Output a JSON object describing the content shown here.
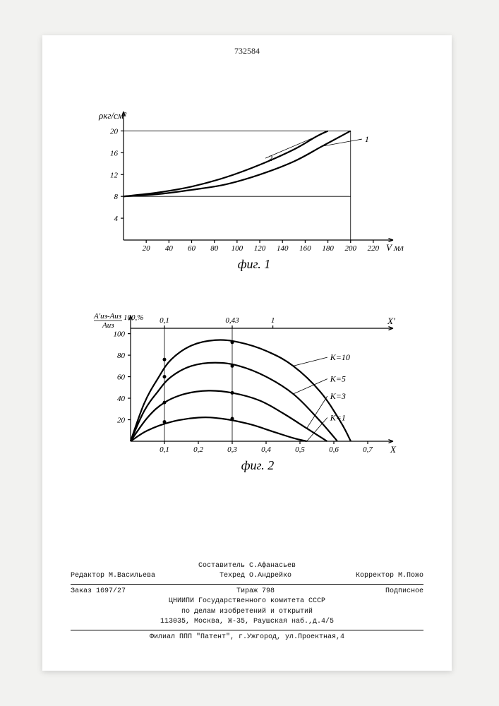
{
  "document_number": "732584",
  "fig1": {
    "type": "line",
    "x_label": "V мл",
    "y_label": "ρкг/см²",
    "x_ticks": [
      20,
      40,
      60,
      80,
      100,
      120,
      140,
      160,
      180,
      200,
      220
    ],
    "y_ticks": [
      4,
      8,
      12,
      16,
      20
    ],
    "xlim": [
      0,
      230
    ],
    "ylim": [
      0,
      22
    ],
    "background_color": "#ffffff",
    "line_color": "#000000",
    "line_width": 2.2,
    "helpers": {
      "h_y": 8,
      "v_x": 200,
      "top_y": 20
    },
    "curves": [
      {
        "label": "1",
        "points": [
          [
            0,
            8
          ],
          [
            30,
            8.4
          ],
          [
            60,
            9.2
          ],
          [
            90,
            10.2
          ],
          [
            120,
            12.0
          ],
          [
            150,
            14.4
          ],
          [
            175,
            17.2
          ],
          [
            200,
            20
          ]
        ],
        "label_pos": [
          210,
          18.5
        ]
      },
      {
        "label": "2",
        "points": [
          [
            0,
            8
          ],
          [
            30,
            8.7
          ],
          [
            60,
            9.8
          ],
          [
            90,
            11.5
          ],
          [
            120,
            13.8
          ],
          [
            150,
            16.6
          ],
          [
            170,
            19.0
          ],
          [
            180,
            20
          ]
        ],
        "label_pos": [
          125,
          15
        ]
      }
    ],
    "caption": "фиг. 1"
  },
  "fig2": {
    "type": "line",
    "x_label": "X",
    "y_label_top": "A'из-Aиз",
    "y_label_den": "Aиз",
    "y_label_unit": "100,%",
    "top_axis_label": "X'",
    "x_ticks": [
      0.1,
      0.2,
      0.3,
      0.4,
      0.5,
      0.6,
      0.7
    ],
    "y_ticks": [
      20,
      40,
      60,
      80,
      100
    ],
    "top_ticks": [
      {
        "v": 0.1,
        "x": 0.1
      },
      {
        "v": 0.43,
        "x": 0.3
      },
      {
        "v": 1,
        "x": 0.42
      }
    ],
    "xlim": [
      0,
      0.75
    ],
    "ylim": [
      0,
      105
    ],
    "background_color": "#ffffff",
    "line_color": "#000000",
    "line_width": 2.2,
    "helpers_vx": [
      0.1,
      0.3
    ],
    "curves": [
      {
        "label": "K=10",
        "points": [
          [
            0,
            0
          ],
          [
            0.04,
            35
          ],
          [
            0.08,
            58
          ],
          [
            0.12,
            76
          ],
          [
            0.18,
            89
          ],
          [
            0.25,
            94
          ],
          [
            0.32,
            92
          ],
          [
            0.4,
            84
          ],
          [
            0.48,
            70
          ],
          [
            0.56,
            46
          ],
          [
            0.62,
            18
          ],
          [
            0.65,
            0
          ]
        ],
        "label_pos": [
          0.56,
          78
        ]
      },
      {
        "label": "K=5",
        "points": [
          [
            0,
            0
          ],
          [
            0.04,
            28
          ],
          [
            0.08,
            46
          ],
          [
            0.12,
            60
          ],
          [
            0.18,
            70
          ],
          [
            0.25,
            73
          ],
          [
            0.32,
            70
          ],
          [
            0.4,
            60
          ],
          [
            0.48,
            44
          ],
          [
            0.55,
            22
          ],
          [
            0.6,
            4
          ],
          [
            0.61,
            0
          ]
        ],
        "label_pos": [
          0.56,
          58
        ]
      },
      {
        "label": "K=3",
        "points": [
          [
            0,
            0
          ],
          [
            0.05,
            22
          ],
          [
            0.1,
            36
          ],
          [
            0.16,
            44
          ],
          [
            0.23,
            47
          ],
          [
            0.3,
            45
          ],
          [
            0.38,
            38
          ],
          [
            0.45,
            26
          ],
          [
            0.52,
            12
          ],
          [
            0.57,
            2
          ],
          [
            0.58,
            0
          ]
        ],
        "label_pos": [
          0.56,
          42
        ]
      },
      {
        "label": "K=1",
        "points": [
          [
            0,
            0
          ],
          [
            0.05,
            10
          ],
          [
            0.12,
            18
          ],
          [
            0.2,
            22
          ],
          [
            0.27,
            21
          ],
          [
            0.35,
            16
          ],
          [
            0.42,
            9
          ],
          [
            0.48,
            3
          ],
          [
            0.52,
            0
          ]
        ],
        "label_pos": [
          0.56,
          22
        ]
      }
    ],
    "caption": "фиг. 2"
  },
  "credits": {
    "author": "Составитель С.Афанасьев",
    "editor": "Редактор М.Васильева",
    "techred": "Техред О.Андрейко",
    "corrector": "Корректор М.Пожо",
    "order": "Заказ 1697/27",
    "tirage": "Тираж 798",
    "subscription": "Подписное",
    "org1": "ЦНИИПИ Государственного комитета СССР",
    "org2": "по делам изобретений и открытий",
    "address1": "113035, Москва, Ж-35, Раушская наб.,д.4/5",
    "branch": "Филиал ППП \"Патент\", г.Ужгород, ул.Проектная,4"
  }
}
